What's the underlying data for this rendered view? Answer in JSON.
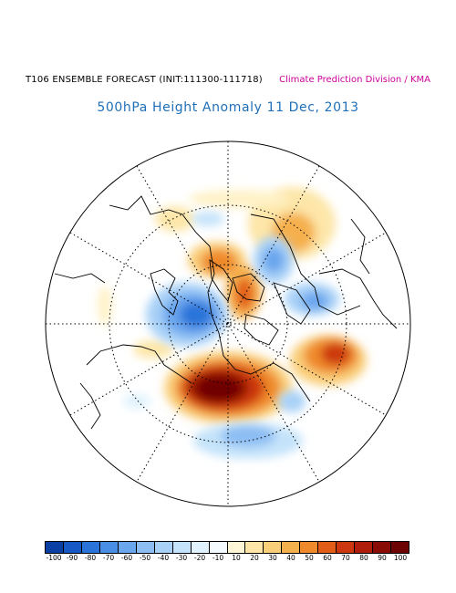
{
  "header": {
    "forecast_label": "T106 ENSEMBLE FORECAST (INIT:111300-111718)",
    "credit": "Climate Prediction Division / KMA",
    "title": "500hPa Height Anomaly 11 Dec, 2013"
  },
  "map": {
    "projection": "north-polar-stereographic",
    "graticule": "dotted",
    "coastline_color": "#000000"
  },
  "colorbar": {
    "labels": [
      "-100",
      "-90",
      "-80",
      "-70",
      "-60",
      "-50",
      "-40",
      "-30",
      "-20",
      "-10",
      "10",
      "20",
      "30",
      "40",
      "50",
      "60",
      "70",
      "80",
      "90",
      "100"
    ],
    "colors": [
      "#0a3fa3",
      "#1659c4",
      "#2a74d9",
      "#4a8fe6",
      "#6aa6ee",
      "#8cbdf3",
      "#a9d1f7",
      "#c4e3fa",
      "#dff2fd",
      "#f4fbff",
      "#fff6d8",
      "#fde6a8",
      "#f9cf7a",
      "#f5b04e",
      "#ef8a2c",
      "#e25e18",
      "#cc3710",
      "#b01d0a",
      "#8a0c06",
      "#6e0303"
    ]
  }
}
